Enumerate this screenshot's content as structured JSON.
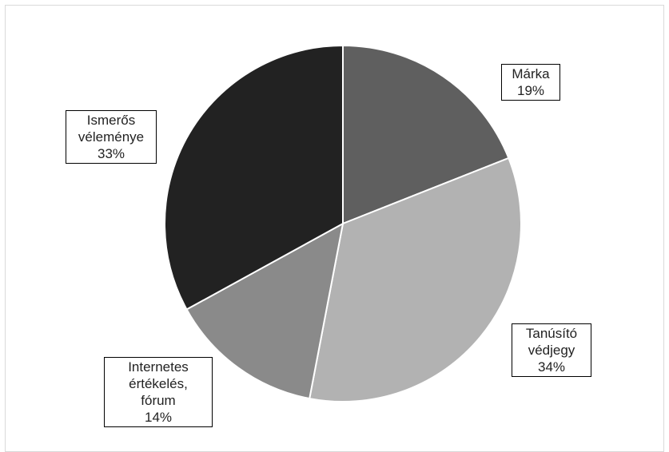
{
  "chart_data": {
    "type": "pie",
    "slices": [
      {
        "label_lines": [
          "Márka"
        ],
        "value": 19,
        "value_label": "19%",
        "color": "#5f5f5f"
      },
      {
        "label_lines": [
          "Tanúsító",
          "védjegy"
        ],
        "value": 34,
        "value_label": "34%",
        "color": "#b2b2b2"
      },
      {
        "label_lines": [
          "Internetes",
          "értékelés,",
          "fórum"
        ],
        "value": 14,
        "value_label": "14%",
        "color": "#8a8a8a"
      },
      {
        "label_lines": [
          "Ismerős",
          "véleménye"
        ],
        "value": 33,
        "value_label": "33%",
        "color": "#222222"
      }
    ],
    "start_angle_deg": 0,
    "direction": "clockwise",
    "legend": "none"
  }
}
